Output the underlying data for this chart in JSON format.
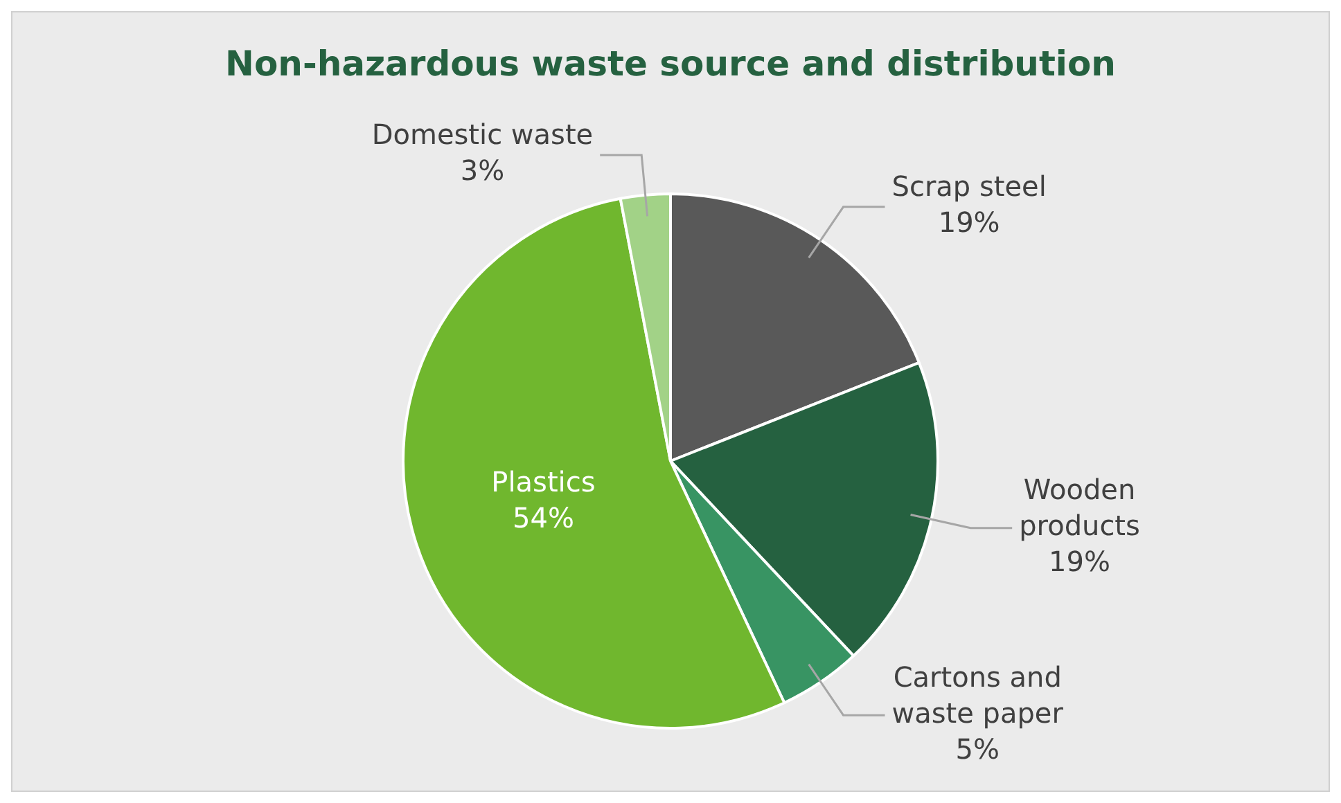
{
  "chart_data": {
    "type": "pie",
    "title": "Non-hazardous waste source and distribution",
    "categories": [
      "Scrap steel",
      "Wooden products",
      "Cartons and waste paper",
      "Plastics",
      "Domestic waste"
    ],
    "values": [
      19,
      19,
      5,
      54,
      3
    ],
    "colors": [
      "#595959",
      "#256140",
      "#389463",
      "#70b72e",
      "#a2d287"
    ],
    "value_labels": [
      "19%",
      "19%",
      "5%",
      "54%",
      "3%"
    ]
  }
}
